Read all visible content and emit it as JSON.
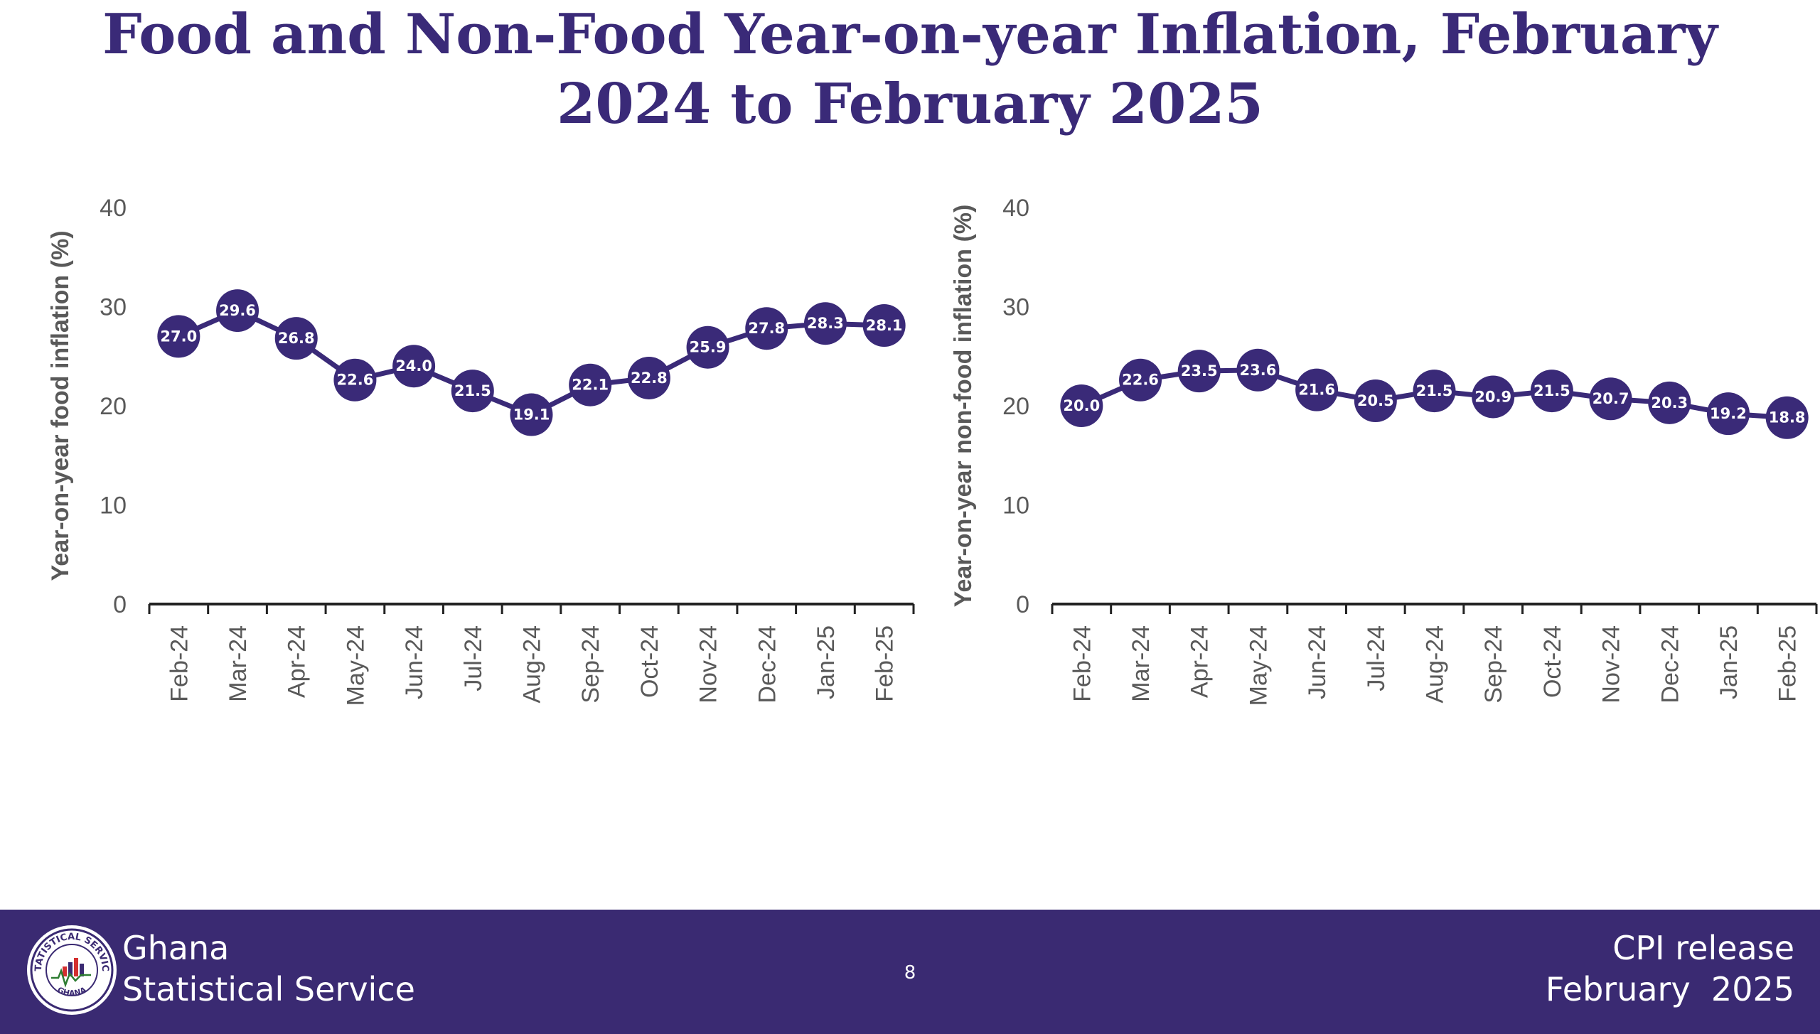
{
  "title": "Food and Non-Food Year-on-year Inflation, February 2024 to February 2025",
  "footer": {
    "org_line1": "Ghana",
    "org_line2": "Statistical Service",
    "logo_text_top": "STATISTICAL SERVICE",
    "logo_text_bottom": "GHANA",
    "page_number": "8",
    "release_line1": "CPI release",
    "release_line2": "February  2025"
  },
  "colors": {
    "title": "#3a2a78",
    "series": "#3a2a78",
    "marker_label": "#ffffff",
    "axis": "#222222",
    "tick_label": "#595959",
    "footer_bg": "#3a2a72"
  },
  "chart_data": [
    {
      "type": "line",
      "title": "",
      "xlabel": "",
      "ylabel": "Year-on-year food inflation (%)",
      "categories": [
        "Feb-24",
        "Mar-24",
        "Apr-24",
        "May-24",
        "Jun-24",
        "Jul-24",
        "Aug-24",
        "Sep-24",
        "Oct-24",
        "Nov-24",
        "Dec-24",
        "Jan-25",
        "Feb-25"
      ],
      "series": [
        {
          "values": [
            27.0,
            29.6,
            26.8,
            22.6,
            24.0,
            21.5,
            19.1,
            22.1,
            22.8,
            25.9,
            27.8,
            28.3,
            28.1
          ]
        }
      ],
      "value_labels": [
        "27.0",
        "29.6",
        "26.8",
        "22.6",
        "24.0",
        "21.5",
        "19.1",
        "22.1",
        "22.8",
        "25.9",
        "27.8",
        "28.3",
        "28.1"
      ],
      "ylim": [
        0,
        40
      ],
      "yticks": [
        "0",
        "10",
        "20",
        "30",
        "40"
      ],
      "grid": false,
      "legend": "none"
    },
    {
      "type": "line",
      "title": "",
      "xlabel": "",
      "ylabel": "Year-on-year non-food inflation (%)",
      "categories": [
        "Feb-24",
        "Mar-24",
        "Apr-24",
        "May-24",
        "Jun-24",
        "Jul-24",
        "Aug-24",
        "Sep-24",
        "Oct-24",
        "Nov-24",
        "Dec-24",
        "Jan-25",
        "Feb-25"
      ],
      "series": [
        {
          "values": [
            20.0,
            22.6,
            23.5,
            23.6,
            21.6,
            20.5,
            21.5,
            20.9,
            21.5,
            20.7,
            20.3,
            19.2,
            18.8
          ]
        }
      ],
      "value_labels": [
        "20.0",
        "22.6",
        "23.5",
        "23.6",
        "21.6",
        "20.5",
        "21.5",
        "20.9",
        "21.5",
        "20.7",
        "20.3",
        "19.2",
        "18.8"
      ],
      "ylim": [
        0,
        40
      ],
      "yticks": [
        "0",
        "10",
        "20",
        "30",
        "40"
      ],
      "grid": false,
      "legend": "none"
    }
  ]
}
